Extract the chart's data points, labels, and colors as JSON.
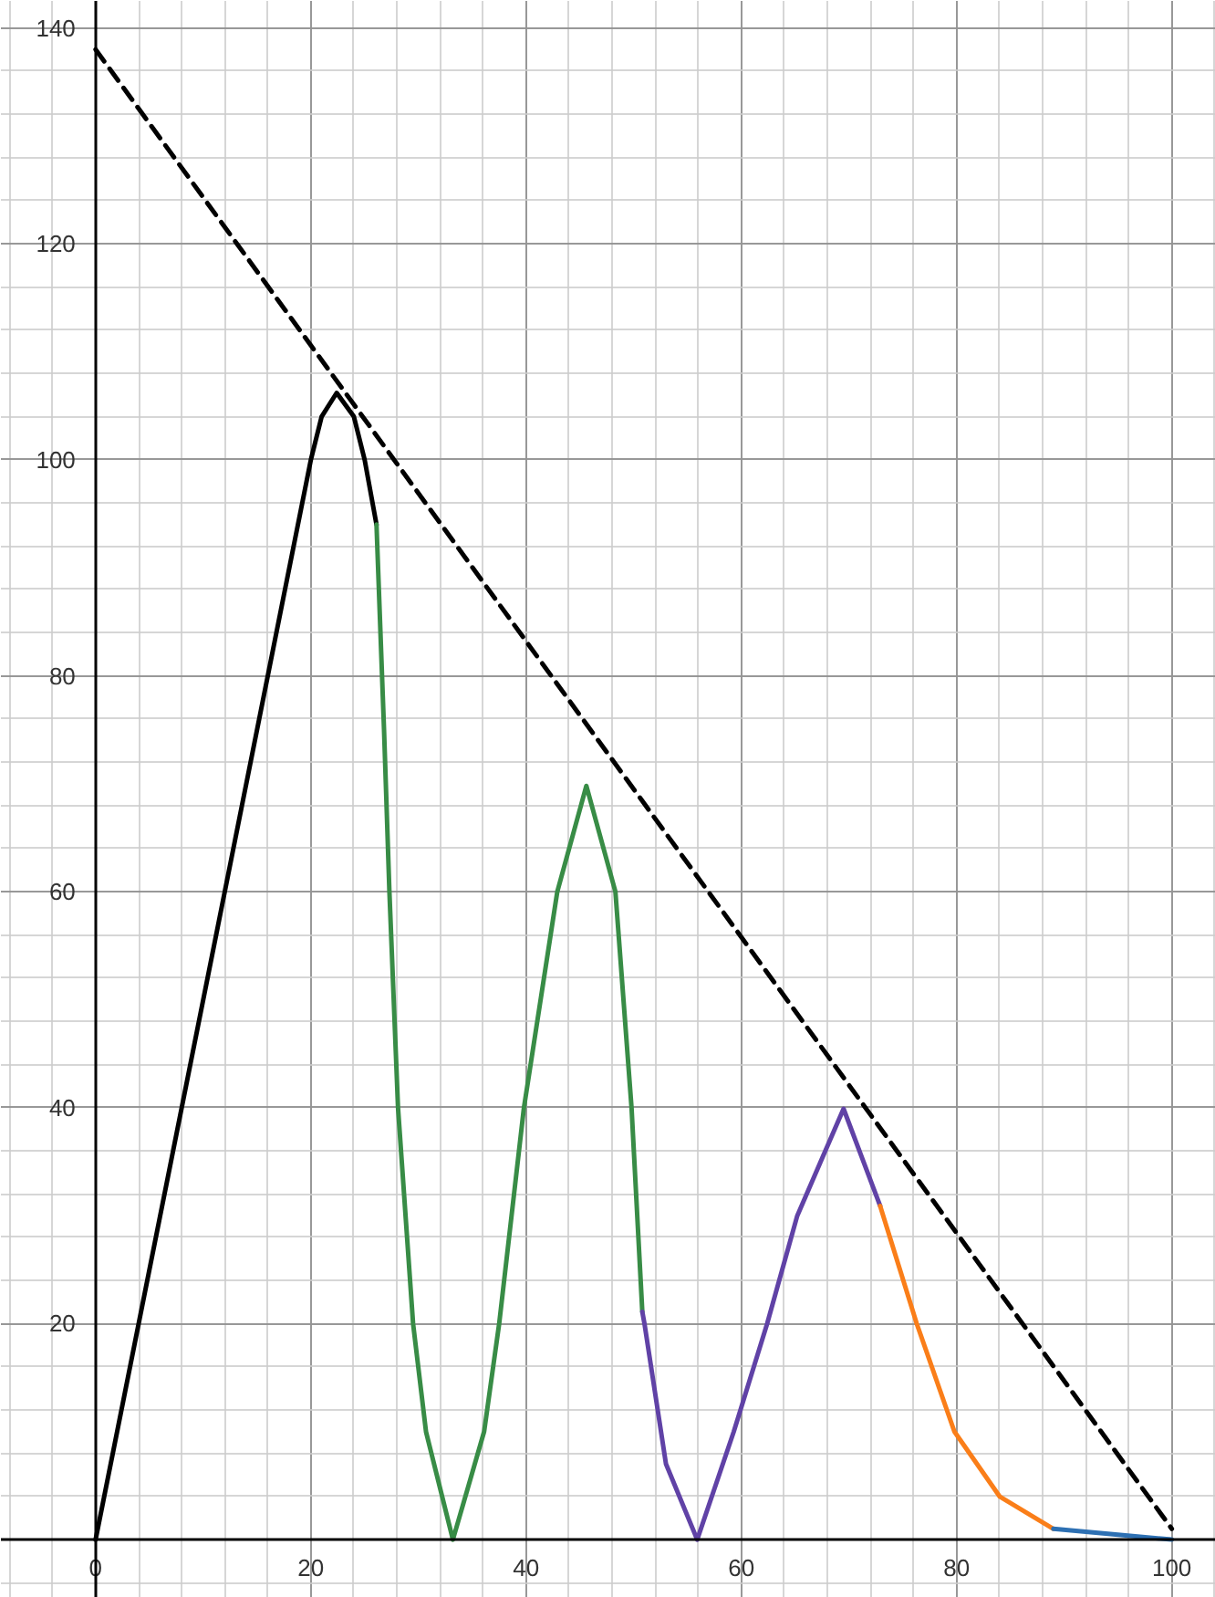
{
  "chart_data": {
    "type": "line",
    "xlim": [
      -8.8,
      104.1
    ],
    "ylim": [
      -5.4,
      142.5
    ],
    "xticks": [
      0,
      20,
      40,
      60,
      80,
      100
    ],
    "yticks": [
      20,
      40,
      60,
      80,
      100,
      120,
      140
    ],
    "grid": true,
    "line_style": "solid",
    "series": [
      {
        "color": "#000000",
        "x": [
          0,
          20,
          21,
          22.4,
          24,
          25,
          26.1
        ],
        "values": [
          0,
          100,
          104,
          106.2,
          104,
          100,
          94
        ]
      },
      {
        "color": "#388c46",
        "x": [
          26.1,
          26.8,
          27.3,
          28.1,
          29.5,
          30.7,
          33.2,
          36.1,
          37.5,
          39.8,
          42.9,
          45.6,
          48.3,
          49.8,
          50.8
        ],
        "values": [
          94,
          75,
          60,
          40,
          20,
          10,
          0,
          10,
          20,
          40,
          60,
          69.8,
          60,
          40,
          21.1
        ]
      },
      {
        "color": "#6042a6",
        "x": [
          50.8,
          51.0,
          53.0,
          55.9,
          59.3,
          62.4,
          65.2,
          69.5,
          72.9
        ],
        "values": [
          21.1,
          20,
          7,
          0,
          10,
          20,
          30,
          39.9,
          30.9
        ]
      },
      {
        "color": "#fa7e19",
        "x": [
          72.9,
          76.3,
          79.8,
          84,
          89.0
        ],
        "values": [
          30.9,
          20,
          10,
          4,
          1.0
        ]
      },
      {
        "color": "#2d70b3",
        "x": [
          89.0,
          100
        ],
        "values": [
          1.0,
          0
        ]
      },
      {
        "color": "#000000",
        "line_style": "dashed",
        "x": [
          0,
          100
        ],
        "values": [
          138,
          1
        ]
      }
    ]
  }
}
